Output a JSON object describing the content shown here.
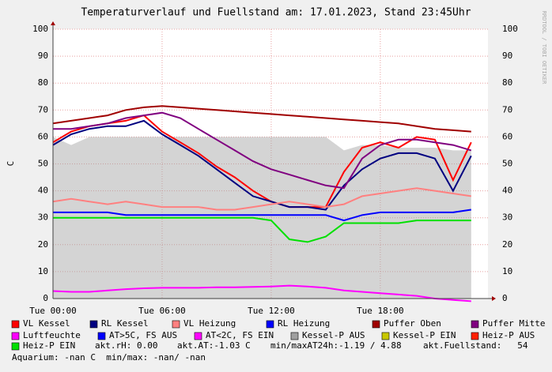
{
  "chart_data": {
    "type": "line",
    "title": "Temperaturverlauf und Fuellstand am: 17.01.2023, Stand 23:45Uhr",
    "y_label": "C",
    "watermark": "RRDTOOL / TOBI OETIKER",
    "x": [
      0,
      1,
      2,
      3,
      4,
      5,
      6,
      7,
      8,
      9,
      10,
      11,
      12,
      13,
      14,
      15,
      16,
      17,
      18,
      19,
      20,
      21,
      22,
      23
    ],
    "xlim": [
      0,
      23.92
    ],
    "xticks": [
      {
        "value": 0,
        "label": "Tue 00:00"
      },
      {
        "value": 6,
        "label": "Tue 06:00"
      },
      {
        "value": 12,
        "label": "Tue 12:00"
      },
      {
        "value": 18,
        "label": "Tue 18:00"
      }
    ],
    "ylim": [
      0,
      100
    ],
    "yticks": [
      0,
      10,
      20,
      30,
      40,
      50,
      60,
      70,
      80,
      90,
      100
    ],
    "grid": true,
    "series": [
      {
        "name": "VL Kessel",
        "color": "#ff0000",
        "values": [
          58,
          62,
          64,
          65,
          66,
          68,
          62,
          58,
          54,
          49,
          45,
          40,
          36,
          34,
          34,
          34,
          47,
          56,
          58,
          56,
          60,
          59,
          44,
          58
        ]
      },
      {
        "name": "RL Kessel",
        "color": "#000080",
        "values": [
          57,
          61,
          63,
          64,
          64,
          66,
          61,
          57,
          53,
          48,
          43,
          38,
          36,
          34,
          34,
          33,
          42,
          48,
          52,
          54,
          54,
          52,
          40,
          53
        ]
      },
      {
        "name": "VL Heizung",
        "color": "#ff8080",
        "values": [
          36,
          37,
          36,
          35,
          36,
          35,
          34,
          34,
          34,
          33,
          33,
          34,
          35,
          36,
          35,
          34,
          35,
          38,
          39,
          40,
          41,
          40,
          39,
          38
        ]
      },
      {
        "name": "RL Heizung",
        "color": "#0000ff",
        "values": [
          32,
          32,
          32,
          32,
          31,
          31,
          31,
          31,
          31,
          31,
          31,
          31,
          31,
          31,
          31,
          31,
          29,
          31,
          32,
          32,
          32,
          32,
          32,
          33
        ]
      },
      {
        "name": "Puffer Oben",
        "color": "#a00000",
        "values": [
          65,
          66,
          67,
          68,
          70,
          71,
          71.5,
          71,
          70.5,
          70,
          69.5,
          69,
          68.5,
          68,
          67.5,
          67,
          66.5,
          66,
          65.5,
          65,
          64,
          63,
          62.5,
          62
        ]
      },
      {
        "name": "Puffer Mitte",
        "color": "#800080",
        "values": [
          63,
          63,
          64,
          65,
          67,
          68,
          69,
          67,
          63,
          59,
          55,
          51,
          48,
          46,
          44,
          42,
          41,
          52,
          57,
          59,
          59,
          58,
          57,
          55
        ]
      },
      {
        "name": "Luftfeuchte",
        "color": "#ff00ff",
        "values": [
          2.8,
          2.5,
          2.5,
          3,
          3.5,
          3.8,
          4,
          4,
          4,
          4.2,
          4.2,
          4.3,
          4.5,
          4.8,
          4.5,
          4,
          3,
          2.5,
          2,
          1.5,
          1,
          0,
          -0.5,
          -1
        ]
      },
      {
        "name": "AT>5C, FS AUS",
        "color": "#0000ff"
      },
      {
        "name": "AT<2C, FS EIN",
        "color": "#ff00ff"
      },
      {
        "name": "Kessel-P AUS",
        "color": "#a0a0a0",
        "area": true,
        "values": [
          60,
          57,
          60,
          60,
          60,
          60,
          60,
          60,
          60,
          60,
          60,
          60,
          60,
          60,
          60,
          60,
          55,
          57,
          57,
          56,
          56,
          56,
          55,
          55
        ]
      },
      {
        "name": "Kessel-P EIN",
        "color": "#c8c800"
      },
      {
        "name": "Heiz-P AUS",
        "color": "#ff2000"
      },
      {
        "name": "Heiz-P EIN",
        "color": "#00e000",
        "values": [
          30,
          30,
          30,
          30,
          30,
          30,
          30,
          30,
          30,
          30,
          30,
          30,
          29,
          22,
          21,
          23,
          28,
          28,
          28,
          28,
          29,
          29,
          29,
          29
        ]
      }
    ],
    "stats": [
      "akt.rH: 0.00",
      "akt.AT:-1.03 C",
      "min/maxAT24h:-1.19 / 4.88",
      "akt.Fuellstand:   54"
    ],
    "footer": "Aquarium: -nan C  min/max: -nan/ -nan"
  }
}
